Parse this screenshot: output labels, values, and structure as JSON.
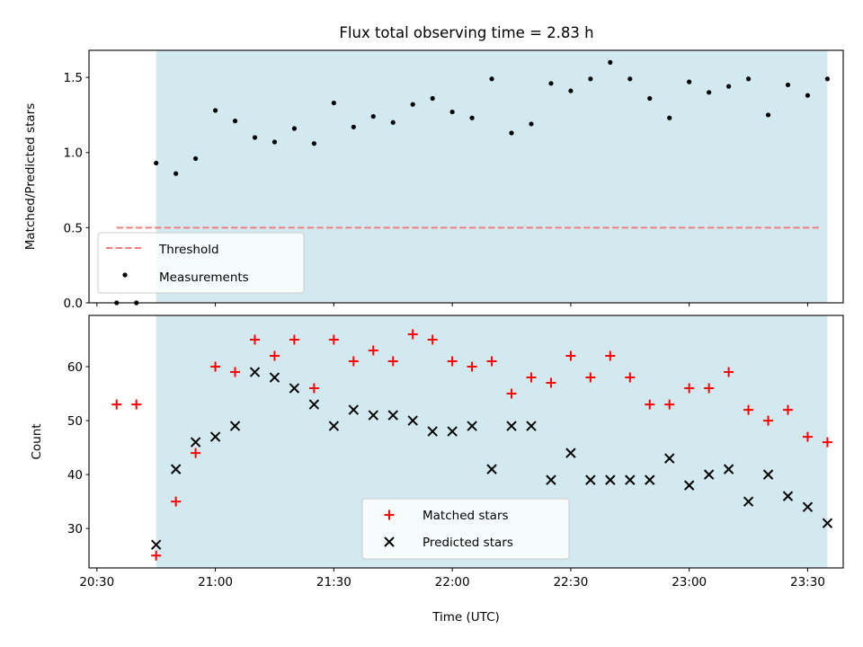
{
  "title": "Flux total observing time = 2.83 h",
  "chart_data": [
    {
      "type": "scatter",
      "ylabel": "Matched/Predicted stars",
      "xlabel": "",
      "ylim": [
        0,
        1.68
      ],
      "yticks": [
        0.0,
        0.5,
        1.0,
        1.5
      ],
      "ytick_labels": [
        "0.0",
        "0.5",
        "1.0",
        "1.5"
      ],
      "threshold": {
        "name": "Threshold",
        "value": 0.5,
        "x_range": [
          "20:35",
          "23:33"
        ],
        "color": "#f08080"
      },
      "shaded_span": {
        "x_range": [
          "20:45",
          "23:35"
        ],
        "color": "#d3e9f0"
      },
      "legend": {
        "position": "lower-left",
        "entries": [
          "Threshold",
          "Measurements"
        ]
      },
      "series": [
        {
          "name": "Measurements",
          "color": "#000000",
          "points": [
            [
              "20:35",
              0.0
            ],
            [
              "20:40",
              0.0
            ],
            [
              "20:45",
              0.93
            ],
            [
              "20:50",
              0.86
            ],
            [
              "20:55",
              0.96
            ],
            [
              "21:00",
              1.28
            ],
            [
              "21:05",
              1.21
            ],
            [
              "21:10",
              1.1
            ],
            [
              "21:15",
              1.07
            ],
            [
              "21:20",
              1.16
            ],
            [
              "21:25",
              1.06
            ],
            [
              "21:30",
              1.33
            ],
            [
              "21:35",
              1.17
            ],
            [
              "21:40",
              1.24
            ],
            [
              "21:45",
              1.2
            ],
            [
              "21:50",
              1.32
            ],
            [
              "21:55",
              1.36
            ],
            [
              "22:00",
              1.27
            ],
            [
              "22:05",
              1.23
            ],
            [
              "22:10",
              1.49
            ],
            [
              "22:15",
              1.13
            ],
            [
              "22:20",
              1.19
            ],
            [
              "22:25",
              1.46
            ],
            [
              "22:30",
              1.41
            ],
            [
              "22:35",
              1.49
            ],
            [
              "22:40",
              1.6
            ],
            [
              "22:45",
              1.49
            ],
            [
              "22:50",
              1.36
            ],
            [
              "22:55",
              1.23
            ],
            [
              "23:00",
              1.47
            ],
            [
              "23:05",
              1.4
            ],
            [
              "23:10",
              1.44
            ],
            [
              "23:15",
              1.49
            ],
            [
              "23:20",
              1.25
            ],
            [
              "23:25",
              1.45
            ],
            [
              "23:30",
              1.38
            ],
            [
              "23:35",
              1.49
            ]
          ]
        }
      ]
    },
    {
      "type": "scatter",
      "ylabel": "Count",
      "xlabel": "Time (UTC)",
      "ylim": [
        22.7,
        69.5
      ],
      "yticks": [
        30,
        40,
        50,
        60
      ],
      "ytick_labels": [
        "30",
        "40",
        "50",
        "60"
      ],
      "xticks": [
        "20:30",
        "21:00",
        "21:30",
        "22:00",
        "22:30",
        "23:00",
        "23:30"
      ],
      "xlim": [
        "20:28",
        "23:39"
      ],
      "shaded_span": {
        "x_range": [
          "20:45",
          "23:35"
        ],
        "color": "#d3e9f0"
      },
      "legend": {
        "position": "lower-center",
        "entries": [
          "Matched stars",
          "Predicted stars"
        ]
      },
      "series": [
        {
          "name": "Matched stars",
          "marker": "plus",
          "color": "#ff0000",
          "points": [
            [
              "20:35",
              53
            ],
            [
              "20:40",
              53
            ],
            [
              "20:45",
              25
            ],
            [
              "20:50",
              35
            ],
            [
              "20:55",
              44
            ],
            [
              "21:00",
              60
            ],
            [
              "21:05",
              59
            ],
            [
              "21:10",
              65
            ],
            [
              "21:15",
              62
            ],
            [
              "21:20",
              65
            ],
            [
              "21:25",
              56
            ],
            [
              "21:30",
              65
            ],
            [
              "21:35",
              61
            ],
            [
              "21:40",
              63
            ],
            [
              "21:45",
              61
            ],
            [
              "21:50",
              66
            ],
            [
              "21:55",
              65
            ],
            [
              "22:00",
              61
            ],
            [
              "22:05",
              60
            ],
            [
              "22:10",
              61
            ],
            [
              "22:15",
              55
            ],
            [
              "22:20",
              58
            ],
            [
              "22:25",
              57
            ],
            [
              "22:30",
              62
            ],
            [
              "22:35",
              58
            ],
            [
              "22:40",
              62
            ],
            [
              "22:45",
              58
            ],
            [
              "22:50",
              53
            ],
            [
              "22:55",
              53
            ],
            [
              "23:00",
              56
            ],
            [
              "23:05",
              56
            ],
            [
              "23:10",
              59
            ],
            [
              "23:15",
              52
            ],
            [
              "23:20",
              50
            ],
            [
              "23:25",
              52
            ],
            [
              "23:30",
              47
            ],
            [
              "23:35",
              46
            ]
          ]
        },
        {
          "name": "Predicted stars",
          "marker": "x",
          "color": "#000000",
          "points": [
            [
              "20:45",
              27
            ],
            [
              "20:50",
              41
            ],
            [
              "20:55",
              46
            ],
            [
              "21:00",
              47
            ],
            [
              "21:05",
              49
            ],
            [
              "21:10",
              59
            ],
            [
              "21:15",
              58
            ],
            [
              "21:20",
              56
            ],
            [
              "21:25",
              53
            ],
            [
              "21:30",
              49
            ],
            [
              "21:35",
              52
            ],
            [
              "21:40",
              51
            ],
            [
              "21:45",
              51
            ],
            [
              "21:50",
              50
            ],
            [
              "21:55",
              48
            ],
            [
              "22:00",
              48
            ],
            [
              "22:05",
              49
            ],
            [
              "22:10",
              41
            ],
            [
              "22:15",
              49
            ],
            [
              "22:20",
              49
            ],
            [
              "22:25",
              39
            ],
            [
              "22:30",
              44
            ],
            [
              "22:35",
              39
            ],
            [
              "22:40",
              39
            ],
            [
              "22:45",
              39
            ],
            [
              "22:50",
              39
            ],
            [
              "22:55",
              43
            ],
            [
              "23:00",
              38
            ],
            [
              "23:05",
              40
            ],
            [
              "23:10",
              41
            ],
            [
              "23:15",
              35
            ],
            [
              "23:20",
              40
            ],
            [
              "23:25",
              36
            ],
            [
              "23:30",
              34
            ],
            [
              "23:35",
              31
            ]
          ]
        }
      ]
    }
  ]
}
